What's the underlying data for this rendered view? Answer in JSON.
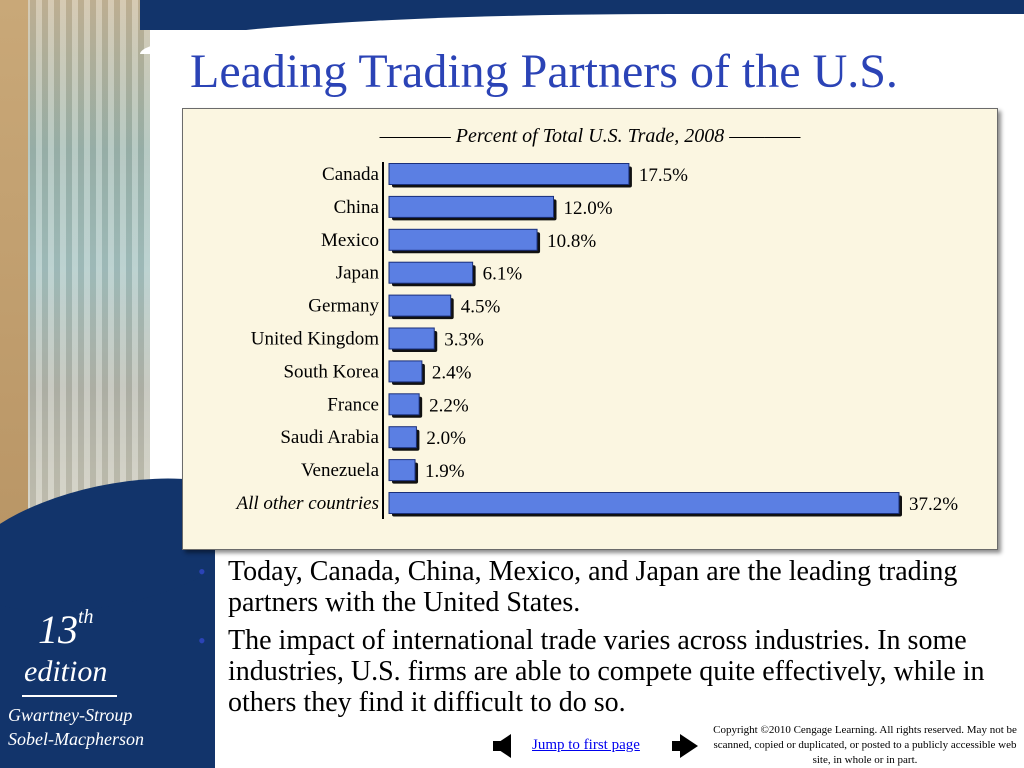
{
  "slide": {
    "title": "Leading Trading Partners of the U.S.",
    "edition_number": "13",
    "edition_suffix": "th",
    "edition_word": "edition",
    "authors_line1": "Gwartney-Stroup",
    "authors_line2": "Sobel-Macpherson"
  },
  "chart_data": {
    "type": "bar",
    "orientation": "horizontal",
    "title": "———— Percent of Total U.S. Trade, 2008 ————",
    "categories": [
      "Canada",
      "China",
      "Mexico",
      "Japan",
      "Germany",
      "United Kingdom",
      "South Korea",
      "France",
      "Saudi Arabia",
      "Venezuela",
      "All other countries"
    ],
    "values": [
      17.5,
      12.0,
      10.8,
      6.1,
      4.5,
      3.3,
      2.4,
      2.2,
      2.0,
      1.9,
      37.2
    ],
    "value_labels": [
      "17.5%",
      "12.0%",
      "10.8%",
      "6.1%",
      "4.5%",
      "3.3%",
      "2.4%",
      "2.2%",
      "2.0%",
      "1.9%",
      "37.2%"
    ],
    "italic_categories": [
      "All other countries"
    ],
    "bar_color": "#5b7fe3",
    "background_color": "#fbf6e1",
    "grid": false,
    "legend": "none"
  },
  "bullets": [
    "Today, Canada, China, Mexico, and Japan are the leading trading partners with the United States.",
    "The impact of international trade varies across industries. In some industries, U.S. firms are able to compete quite effectively, while in others they find it difficult to do so."
  ],
  "bullet_symbol": "•",
  "footer": {
    "jump_link": "Jump to first page",
    "copyright": "Copyright ©2010 Cengage Learning. All rights reserved. May not be scanned, copied or duplicated, or posted to a publicly accessible web site, in whole or in part."
  },
  "colors": {
    "title_blue": "#2b43b6",
    "navy": "#12346b"
  }
}
